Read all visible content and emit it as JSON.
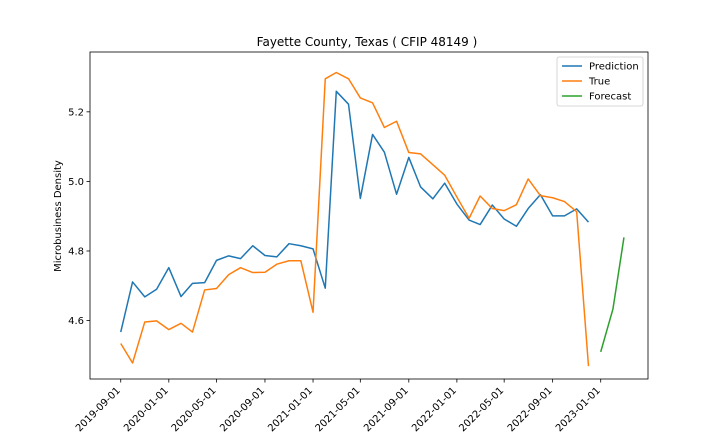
{
  "chart_data": {
    "type": "line",
    "title": "Fayette County, Texas ( CFIP 48149 )",
    "xlabel": "",
    "ylabel": "Microbusiness Density",
    "x_ticks": [
      "2019-09-01",
      "2020-01-01",
      "2020-05-01",
      "2020-09-01",
      "2021-01-01",
      "2021-05-01",
      "2021-09-01",
      "2022-01-01",
      "2022-05-01",
      "2022-09-01",
      "2023-01-01"
    ],
    "y_ticks": [
      "4.6",
      "4.8",
      "5.0",
      "5.2"
    ],
    "xlim": [
      "2019-06-15",
      "2023-05-01"
    ],
    "ylim": [
      4.432,
      5.372
    ],
    "grid": false,
    "legend_position": "top-right",
    "series": [
      {
        "name": "Prediction",
        "color": "#1f77b4",
        "x": [
          "2019-09-01",
          "2019-10-01",
          "2019-11-01",
          "2019-12-01",
          "2020-01-01",
          "2020-02-01",
          "2020-03-01",
          "2020-04-01",
          "2020-05-01",
          "2020-06-01",
          "2020-07-01",
          "2020-08-01",
          "2020-09-01",
          "2020-10-01",
          "2020-11-01",
          "2020-12-01",
          "2021-01-01",
          "2021-02-01",
          "2021-03-01",
          "2021-04-01",
          "2021-05-01",
          "2021-06-01",
          "2021-07-01",
          "2021-08-01",
          "2021-09-01",
          "2021-10-01",
          "2021-11-01",
          "2021-12-01",
          "2022-01-01",
          "2022-02-01",
          "2022-03-01",
          "2022-04-01",
          "2022-05-01",
          "2022-06-01",
          "2022-07-01",
          "2022-08-01",
          "2022-09-01",
          "2022-10-01",
          "2022-11-01",
          "2022-12-01"
        ],
        "y": [
          4.567,
          4.711,
          4.668,
          4.69,
          4.752,
          4.669,
          4.707,
          4.709,
          4.773,
          4.786,
          4.778,
          4.815,
          4.787,
          4.783,
          4.821,
          4.815,
          4.806,
          4.693,
          5.259,
          5.222,
          4.951,
          5.135,
          5.084,
          4.963,
          5.069,
          4.984,
          4.95,
          4.995,
          4.935,
          4.889,
          4.876,
          4.932,
          4.892,
          4.871,
          4.922,
          4.962,
          4.901,
          4.901,
          4.921,
          4.883
        ]
      },
      {
        "name": "True",
        "color": "#ff7f0e",
        "x": [
          "2019-09-01",
          "2019-10-01",
          "2019-11-01",
          "2019-12-01",
          "2020-01-01",
          "2020-02-01",
          "2020-03-01",
          "2020-04-01",
          "2020-05-01",
          "2020-06-01",
          "2020-07-01",
          "2020-08-01",
          "2020-09-01",
          "2020-10-01",
          "2020-11-01",
          "2020-12-01",
          "2021-01-01",
          "2021-02-01",
          "2021-03-01",
          "2021-04-01",
          "2021-05-01",
          "2021-06-01",
          "2021-07-01",
          "2021-08-01",
          "2021-09-01",
          "2021-10-01",
          "2021-11-01",
          "2021-12-01",
          "2022-01-01",
          "2022-02-01",
          "2022-03-01",
          "2022-04-01",
          "2022-05-01",
          "2022-06-01",
          "2022-07-01",
          "2022-08-01",
          "2022-09-01",
          "2022-10-01",
          "2022-11-01",
          "2022-12-01"
        ],
        "y": [
          4.534,
          4.478,
          4.596,
          4.599,
          4.574,
          4.592,
          4.567,
          4.688,
          4.692,
          4.732,
          4.752,
          4.738,
          4.739,
          4.762,
          4.772,
          4.772,
          4.624,
          5.295,
          5.313,
          5.295,
          5.24,
          5.226,
          5.155,
          5.173,
          5.083,
          5.079,
          5.048,
          5.018,
          4.955,
          4.894,
          4.958,
          4.922,
          4.916,
          4.933,
          5.007,
          4.959,
          4.953,
          4.942,
          4.913,
          4.469
        ]
      },
      {
        "name": "Forecast",
        "color": "#2ca02c",
        "x": [
          "2023-01-01",
          "2023-02-01",
          "2023-03-01"
        ],
        "y": [
          4.51,
          4.633,
          4.839
        ]
      }
    ]
  }
}
